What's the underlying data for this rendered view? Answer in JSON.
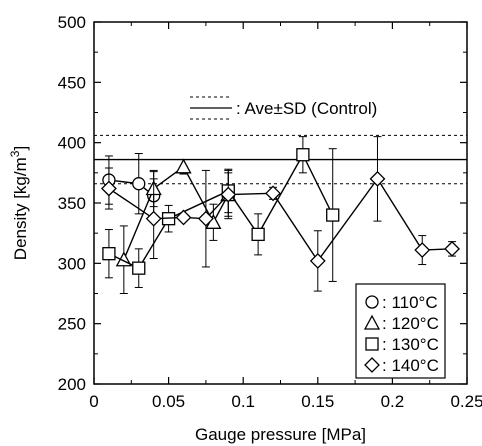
{
  "chart_data": {
    "type": "line",
    "xlabel": "Gauge pressure [MPa]",
    "ylabel": "Density [kg/m³]",
    "ylabel_base": "Density [kg/m",
    "ylabel_sup": "3",
    "ylabel_close": "]",
    "xlim": [
      0,
      0.25
    ],
    "ylim": [
      200,
      500
    ],
    "xticks": [
      "0",
      "0.05",
      "0.1",
      "0.15",
      "0.2",
      "0.25"
    ],
    "xtick_values": [
      0,
      0.05,
      0.1,
      0.15,
      0.2,
      0.25
    ],
    "yticks": [
      "200",
      "250",
      "300",
      "350",
      "400",
      "450",
      "500"
    ],
    "ytick_values": [
      200,
      250,
      300,
      350,
      400,
      450,
      500
    ],
    "grid": false,
    "control": {
      "label": ": Ave±SD (Control)",
      "mean": 386,
      "sd": 20
    },
    "legend_position": "bottom-right",
    "series": [
      {
        "name": ": 110°C",
        "marker": "circle",
        "points": [
          {
            "x": 0.01,
            "y": 369,
            "err": 20
          },
          {
            "x": 0.03,
            "y": 366,
            "err": 25
          },
          {
            "x": 0.04,
            "y": 356,
            "err": 20
          }
        ]
      },
      {
        "name": ": 120°C",
        "marker": "triangle",
        "points": [
          {
            "x": 0.02,
            "y": 303,
            "err": 28
          },
          {
            "x": 0.04,
            "y": 362,
            "err": 15
          },
          {
            "x": 0.06,
            "y": 380,
            "err": 6
          },
          {
            "x": 0.08,
            "y": 334,
            "err": 15
          },
          {
            "x": 0.09,
            "y": 357,
            "err": 20
          }
        ]
      },
      {
        "name": ": 130°C",
        "marker": "square",
        "points": [
          {
            "x": 0.01,
            "y": 308,
            "err": 20
          },
          {
            "x": 0.03,
            "y": 296,
            "err": 16
          },
          {
            "x": 0.05,
            "y": 337,
            "err": 11
          },
          {
            "x": 0.09,
            "y": 360,
            "err": 18
          },
          {
            "x": 0.11,
            "y": 324,
            "err": 17
          },
          {
            "x": 0.14,
            "y": 390,
            "err": 15
          },
          {
            "x": 0.16,
            "y": 340,
            "err": 55
          }
        ]
      },
      {
        "name": ": 140°C",
        "marker": "diamond",
        "points": [
          {
            "x": 0.01,
            "y": 362,
            "err": 17
          },
          {
            "x": 0.04,
            "y": 337,
            "err": 33
          },
          {
            "x": 0.06,
            "y": 338,
            "err": 0
          },
          {
            "x": 0.075,
            "y": 337,
            "err": 40
          },
          {
            "x": 0.09,
            "y": 357,
            "err": 18
          },
          {
            "x": 0.12,
            "y": 358,
            "err": 5
          },
          {
            "x": 0.15,
            "y": 302,
            "err": 25
          },
          {
            "x": 0.19,
            "y": 370,
            "err": 35
          },
          {
            "x": 0.22,
            "y": 311,
            "err": 12
          },
          {
            "x": 0.24,
            "y": 312,
            "err": 6
          }
        ]
      }
    ]
  }
}
